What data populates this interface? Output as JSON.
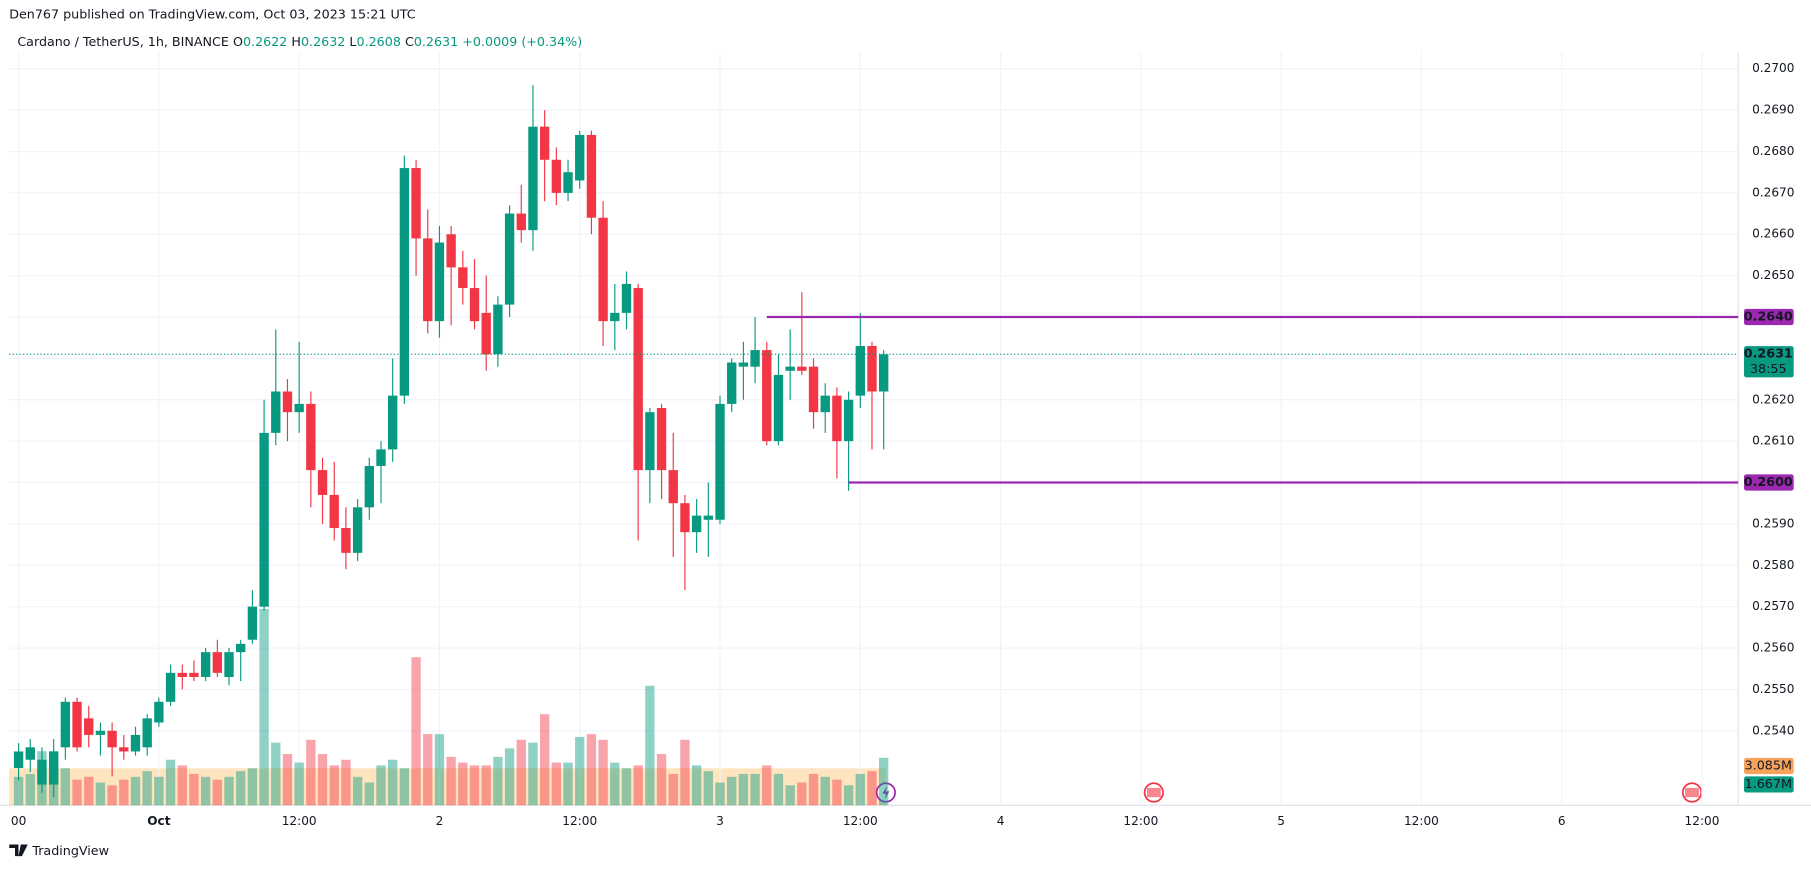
{
  "header": "Den767 published on TradingView.com, Oct 03, 2023 15:21 UTC",
  "footer": "TradingView",
  "chart_data": {
    "type": "candlestick",
    "symbol": "Cardano / TetherUS, 1h, BINANCE",
    "ohlc_legend": [
      {
        "key": "O",
        "value": "0.2622"
      },
      {
        "key": "H",
        "value": "0.2632"
      },
      {
        "key": "L",
        "value": "0.2608"
      },
      {
        "key": "C",
        "value": "0.2631"
      }
    ],
    "change": "+0.0009 (+0.34%)",
    "up_color": "#089981",
    "down_color": "#f23645",
    "x": [
      0,
      1,
      2,
      3,
      4,
      5,
      6,
      7,
      8,
      9,
      10,
      11,
      12,
      13,
      14,
      15,
      16,
      17,
      18,
      19,
      20,
      21,
      22,
      23,
      24,
      25,
      26,
      27,
      28,
      29,
      30,
      31,
      32,
      33,
      34,
      35,
      36,
      37,
      38,
      39,
      40,
      41,
      42,
      43,
      44,
      45,
      46,
      47,
      48,
      49,
      50,
      51,
      52,
      53,
      54,
      55,
      56,
      57,
      58,
      59,
      60,
      61,
      62,
      63,
      64,
      65,
      66,
      67,
      68,
      69,
      70,
      71,
      72,
      73,
      74
    ],
    "open": [
      0.2531,
      0.2533,
      0.2527,
      0.2527,
      0.2536,
      0.2547,
      0.2543,
      0.2539,
      0.254,
      0.2536,
      0.2535,
      0.2536,
      0.2542,
      0.2547,
      0.2554,
      0.2554,
      0.2553,
      0.2559,
      0.2553,
      0.2559,
      0.2562,
      0.257,
      0.2612,
      0.2622,
      0.2617,
      0.2619,
      0.2603,
      0.2597,
      0.2589,
      0.2583,
      0.2594,
      0.2604,
      0.2608,
      0.2621,
      0.2676,
      0.2659,
      0.2639,
      0.266,
      0.2652,
      0.2647,
      0.2641,
      0.2631,
      0.2643,
      0.2665,
      0.2661,
      0.2686,
      0.2678,
      0.267,
      0.2673,
      0.2684,
      0.2664,
      0.2639,
      0.2641,
      0.2647,
      0.2603,
      0.2618,
      0.2603,
      0.2595,
      0.2588,
      0.2591,
      0.2591,
      0.2619,
      0.2628,
      0.2628,
      0.2632,
      0.261,
      0.2627,
      0.2628,
      0.2628,
      0.2617,
      0.2621,
      0.261,
      0.2621,
      0.2633,
      0.2622
    ],
    "high": [
      0.2537,
      0.2538,
      0.2536,
      0.2538,
      0.2548,
      0.2548,
      0.2546,
      0.2542,
      0.2542,
      0.2539,
      0.2541,
      0.2544,
      0.2548,
      0.2556,
      0.2556,
      0.2557,
      0.256,
      0.2562,
      0.256,
      0.2562,
      0.2574,
      0.262,
      0.2637,
      0.2625,
      0.2634,
      0.2622,
      0.2606,
      0.2605,
      0.2594,
      0.2596,
      0.2606,
      0.261,
      0.263,
      0.2679,
      0.2678,
      0.2666,
      0.2662,
      0.2662,
      0.2656,
      0.2654,
      0.265,
      0.2645,
      0.2667,
      0.2672,
      0.2696,
      0.269,
      0.2681,
      0.2678,
      0.2685,
      0.2685,
      0.2668,
      0.2648,
      0.2651,
      0.2648,
      0.2618,
      0.2619,
      0.2612,
      0.2597,
      0.2596,
      0.26,
      0.2621,
      0.263,
      0.2634,
      0.264,
      0.2634,
      0.2631,
      0.2637,
      0.2646,
      0.263,
      0.2624,
      0.2623,
      0.2622,
      0.2641,
      0.2634,
      0.2632
    ],
    "low": [
      0.2528,
      0.253,
      0.2525,
      0.2524,
      0.2533,
      0.2535,
      0.2536,
      0.2534,
      0.2529,
      0.2533,
      0.2534,
      0.2534,
      0.2541,
      0.2546,
      0.255,
      0.2552,
      0.2552,
      0.2553,
      0.2551,
      0.2552,
      0.2561,
      0.2569,
      0.2609,
      0.261,
      0.2612,
      0.2594,
      0.259,
      0.2586,
      0.2579,
      0.2581,
      0.2591,
      0.2595,
      0.2605,
      0.2619,
      0.265,
      0.2636,
      0.2635,
      0.2638,
      0.2643,
      0.2637,
      0.2627,
      0.2628,
      0.264,
      0.2658,
      0.2656,
      0.2668,
      0.2667,
      0.2668,
      0.2671,
      0.266,
      0.2633,
      0.2632,
      0.2637,
      0.2586,
      0.2595,
      0.2596,
      0.2582,
      0.2574,
      0.2583,
      0.2582,
      0.259,
      0.2617,
      0.262,
      0.2624,
      0.2609,
      0.2609,
      0.262,
      0.2626,
      0.2613,
      0.2612,
      0.2601,
      0.2598,
      0.2618,
      0.2608,
      0.2608
    ],
    "close": [
      0.2535,
      0.2536,
      0.2533,
      0.2535,
      0.2547,
      0.2536,
      0.2539,
      0.254,
      0.2536,
      0.2535,
      0.2539,
      0.2543,
      0.2547,
      0.2554,
      0.2553,
      0.2553,
      0.2559,
      0.2554,
      0.2559,
      0.2561,
      0.257,
      0.2612,
      0.2622,
      0.2617,
      0.2619,
      0.2603,
      0.2597,
      0.2589,
      0.2583,
      0.2594,
      0.2604,
      0.2608,
      0.2621,
      0.2676,
      0.2659,
      0.2639,
      0.2658,
      0.2652,
      0.2647,
      0.2639,
      0.2631,
      0.2643,
      0.2665,
      0.2661,
      0.2686,
      0.2678,
      0.267,
      0.2675,
      0.2684,
      0.2664,
      0.2639,
      0.2641,
      0.2648,
      0.2603,
      0.2617,
      0.2603,
      0.2595,
      0.2588,
      0.2592,
      0.2592,
      0.2619,
      0.2629,
      0.2629,
      0.2632,
      0.261,
      0.2626,
      0.2628,
      0.2627,
      0.2617,
      0.2621,
      0.261,
      0.262,
      0.2633,
      0.2622,
      0.2631
    ],
    "volume": [
      1.0,
      1.1,
      1.9,
      1.9,
      1.3,
      0.9,
      1.0,
      0.8,
      0.7,
      0.9,
      1.0,
      1.2,
      1.0,
      1.6,
      1.4,
      1.1,
      1.0,
      0.9,
      1.0,
      1.2,
      1.3,
      6.9,
      2.2,
      1.8,
      1.5,
      2.3,
      1.8,
      1.4,
      1.6,
      1.0,
      0.8,
      1.4,
      1.6,
      1.3,
      5.2,
      2.5,
      2.5,
      1.7,
      1.5,
      1.4,
      1.4,
      1.7,
      2.0,
      2.3,
      2.2,
      3.2,
      1.5,
      1.5,
      2.4,
      2.5,
      2.3,
      1.5,
      1.3,
      1.4,
      4.2,
      1.8,
      1.1,
      2.3,
      1.4,
      1.2,
      0.8,
      1.0,
      1.1,
      1.1,
      1.4,
      1.1,
      0.7,
      0.8,
      1.1,
      1.0,
      0.9,
      0.7,
      1.1,
      1.2,
      1.667
    ],
    "volume_labels": [
      {
        "value": "3.085M",
        "color": "#f7a35c"
      },
      {
        "value": "1.667M",
        "color": "#089981"
      }
    ],
    "levels": [
      {
        "value": 0.264,
        "label": "0.2640",
        "start_x": 64,
        "color": "#9c27b0"
      },
      {
        "value": 0.26,
        "label": "0.2600",
        "start_x": 71,
        "color": "#9c27b0"
      }
    ],
    "last_price": {
      "value": 0.2631,
      "label": "0.2631",
      "countdown": "38:55"
    },
    "xlim": [
      -0.8,
      147.1
    ],
    "xticks": [
      {
        "value": 0,
        "label": "00"
      },
      {
        "value": 12,
        "label": "Oct"
      },
      {
        "value": 24,
        "label": "12:00"
      },
      {
        "value": 36,
        "label": "2"
      },
      {
        "value": 48,
        "label": "12:00"
      },
      {
        "value": 60,
        "label": "3"
      },
      {
        "value": 72,
        "label": "12:00"
      },
      {
        "value": 84,
        "label": "4"
      },
      {
        "value": 96,
        "label": "12:00"
      },
      {
        "value": 108,
        "label": "5"
      },
      {
        "value": 120,
        "label": "12:00"
      },
      {
        "value": 132,
        "label": "6"
      },
      {
        "value": 144,
        "label": "12:00"
      }
    ],
    "ylim": [
      0.2522,
      0.2704
    ],
    "yticks": [
      {
        "value": 0.254,
        "label": "0.2540"
      },
      {
        "value": 0.255,
        "label": "0.2550"
      },
      {
        "value": 0.256,
        "label": "0.2560"
      },
      {
        "value": 0.257,
        "label": "0.2570"
      },
      {
        "value": 0.258,
        "label": "0.2580"
      },
      {
        "value": 0.259,
        "label": "0.2590"
      },
      {
        "value": 0.26,
        "label": "0.2600"
      },
      {
        "value": 0.261,
        "label": "0.2610"
      },
      {
        "value": 0.262,
        "label": "0.2620"
      },
      {
        "value": 0.263,
        "label": "0.2630"
      },
      {
        "value": 0.264,
        "label": "0.2640"
      },
      {
        "value": 0.265,
        "label": "0.2650"
      },
      {
        "value": 0.266,
        "label": "0.2660"
      },
      {
        "value": 0.267,
        "label": "0.2670"
      },
      {
        "value": 0.268,
        "label": "0.2680"
      },
      {
        "value": 0.269,
        "label": "0.2690"
      },
      {
        "value": 0.27,
        "label": "0.2700"
      }
    ],
    "grid": true
  }
}
